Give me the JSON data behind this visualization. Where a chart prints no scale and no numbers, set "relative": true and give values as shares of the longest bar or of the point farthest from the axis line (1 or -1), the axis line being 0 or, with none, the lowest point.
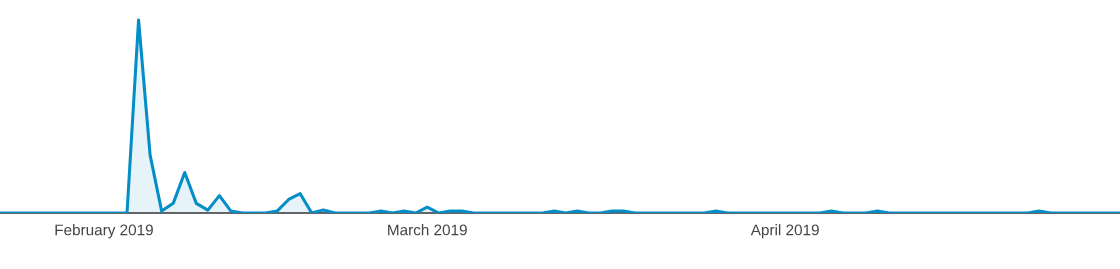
{
  "chart_data": {
    "type": "area",
    "relative": true,
    "x": [
      "2019-01-23",
      "2019-02-03",
      "2019-02-04",
      "2019-02-05",
      "2019-02-06",
      "2019-02-07",
      "2019-02-08",
      "2019-02-09",
      "2019-02-10",
      "2019-02-11",
      "2019-02-12",
      "2019-02-13",
      "2019-02-15",
      "2019-02-16",
      "2019-02-17",
      "2019-02-18",
      "2019-02-19",
      "2019-02-20",
      "2019-02-21",
      "2019-02-24",
      "2019-02-25",
      "2019-02-26",
      "2019-02-27",
      "2019-02-28",
      "2019-03-01",
      "2019-03-02",
      "2019-03-03",
      "2019-03-04",
      "2019-03-05",
      "2019-03-11",
      "2019-03-12",
      "2019-03-13",
      "2019-03-14",
      "2019-03-15",
      "2019-03-16",
      "2019-03-17",
      "2019-03-18",
      "2019-03-19",
      "2019-03-25",
      "2019-03-26",
      "2019-03-27",
      "2019-04-04",
      "2019-04-05",
      "2019-04-06",
      "2019-04-08",
      "2019-04-09",
      "2019-04-10",
      "2019-04-22",
      "2019-04-23",
      "2019-04-24",
      "2019-04-30"
    ],
    "series": [
      {
        "color": "#058dc7",
        "values": [
          0,
          0,
          1,
          0.3,
          0.01,
          0.05,
          0.21,
          0.05,
          0.015,
          0.09,
          0.01,
          0,
          0,
          0.01,
          0.07,
          0.1,
          0,
          0.015,
          0,
          0,
          0.01,
          0,
          0.01,
          0,
          0.03,
          0,
          0.01,
          0.01,
          0,
          0,
          0.01,
          0,
          0.01,
          0,
          0,
          0.01,
          0.01,
          0,
          0,
          0.01,
          0,
          0,
          0.01,
          0,
          0,
          0.01,
          0,
          0,
          0.01,
          0,
          0
        ]
      }
    ],
    "xlim": [
      "2019-01-23",
      "2019-04-30"
    ],
    "xticks": [
      {
        "value": "2019-02-01",
        "label": "February 2019"
      },
      {
        "value": "2019-03-01",
        "label": "March 2019"
      },
      {
        "value": "2019-04-01",
        "label": "April 2019"
      }
    ],
    "line_style": "solid",
    "marker": "none",
    "legend": false,
    "grid": false
  }
}
